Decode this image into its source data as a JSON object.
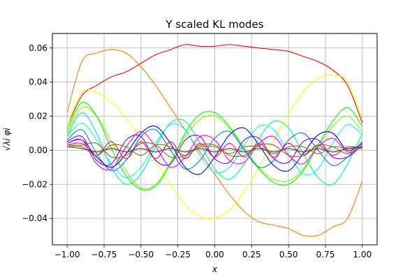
{
  "chart_data": {
    "type": "line",
    "title": "Y scaled KL modes",
    "xlabel": "x",
    "ylabel": "√λi φi",
    "xlim": [
      -1.1,
      1.1
    ],
    "ylim": [
      -0.0555,
      0.0685
    ],
    "x_ticks": [
      -1.0,
      -0.75,
      -0.5,
      -0.25,
      0.0,
      0.25,
      0.5,
      0.75,
      1.0
    ],
    "x_tick_labels": [
      "−1.00",
      "−0.75",
      "−0.50",
      "−0.25",
      "0.00",
      "0.25",
      "0.50",
      "0.75",
      "1.00"
    ],
    "y_ticks": [
      -0.04,
      -0.02,
      0.0,
      0.02,
      0.04,
      0.06
    ],
    "y_tick_labels": [
      "−0.04",
      "−0.02",
      "0.00",
      "0.02",
      "0.04",
      "0.06"
    ],
    "grid": true,
    "legend": false,
    "series": [
      {
        "color": "#ff0000",
        "x": [
          -1.0,
          -0.9,
          -0.8,
          -0.7,
          -0.6,
          -0.5,
          -0.4,
          -0.3,
          -0.2,
          -0.1,
          0.0,
          0.1,
          0.2,
          0.3,
          0.4,
          0.5,
          0.6,
          0.7,
          0.8,
          0.9,
          1.0
        ],
        "y": [
          0.014,
          0.032,
          0.038,
          0.043,
          0.046,
          0.051,
          0.056,
          0.059,
          0.062,
          0.061,
          0.061,
          0.062,
          0.061,
          0.06,
          0.059,
          0.058,
          0.055,
          0.052,
          0.047,
          0.038,
          0.016
        ]
      },
      {
        "color": "#ff8000",
        "x": [
          -1.0,
          -0.9,
          -0.8,
          -0.7,
          -0.6,
          -0.5,
          -0.4,
          -0.3,
          -0.2,
          -0.1,
          0.0,
          0.1,
          0.2,
          0.3,
          0.4,
          0.5,
          0.6,
          0.7,
          0.8,
          0.9,
          1.0
        ],
        "y": [
          0.022,
          0.052,
          0.057,
          0.059,
          0.057,
          0.049,
          0.038,
          0.025,
          0.012,
          -0.001,
          -0.014,
          -0.026,
          -0.036,
          -0.042,
          -0.044,
          -0.046,
          -0.05,
          -0.05,
          -0.045,
          -0.04,
          -0.018
        ]
      },
      {
        "color": "#ffff00",
        "x": [
          -1.0,
          -0.9,
          -0.8,
          -0.7,
          -0.6,
          -0.5,
          -0.4,
          -0.3,
          -0.2,
          -0.1,
          0.0,
          0.1,
          0.2,
          0.3,
          0.4,
          0.5,
          0.6,
          0.7,
          0.8,
          0.9,
          1.0
        ],
        "y": [
          0.014,
          0.034,
          0.034,
          0.028,
          0.019,
          0.007,
          -0.007,
          -0.02,
          -0.032,
          -0.039,
          -0.04,
          -0.035,
          -0.024,
          -0.01,
          0.006,
          0.021,
          0.034,
          0.042,
          0.044,
          0.04,
          0.018
        ]
      },
      {
        "color": "#80ff00",
        "x": [
          -1.0,
          -0.9,
          -0.8,
          -0.7,
          -0.6,
          -0.5,
          -0.4,
          -0.3,
          -0.2,
          -0.1,
          0.0,
          0.1,
          0.2,
          0.3,
          0.4,
          0.5,
          0.6,
          0.7,
          0.8,
          0.9,
          1.0
        ],
        "y": [
          0.01,
          0.025,
          0.02,
          0.005,
          -0.012,
          -0.022,
          -0.02,
          -0.007,
          0.008,
          0.018,
          0.02,
          0.013,
          0.001,
          -0.01,
          -0.017,
          -0.018,
          -0.011,
          0.002,
          0.014,
          0.02,
          0.011
        ]
      },
      {
        "color": "#00ff00",
        "x": [
          -1.0,
          -0.9,
          -0.8,
          -0.7,
          -0.6,
          -0.5,
          -0.4,
          -0.3,
          -0.2,
          -0.1,
          0.0,
          0.1,
          0.2,
          0.3,
          0.4,
          0.5,
          0.6,
          0.7,
          0.8,
          0.9,
          1.0
        ],
        "y": [
          0.012,
          0.028,
          0.02,
          0.001,
          -0.015,
          -0.023,
          -0.021,
          -0.008,
          0.01,
          0.021,
          0.022,
          0.014,
          0.001,
          -0.011,
          -0.019,
          -0.02,
          -0.012,
          0.003,
          0.017,
          0.025,
          0.014
        ]
      },
      {
        "color": "#00ff80",
        "x": [
          -1.0,
          -0.9,
          -0.8,
          -0.7,
          -0.6,
          -0.5,
          -0.4,
          -0.3,
          -0.2,
          -0.1,
          0.0,
          0.1,
          0.2,
          0.3,
          0.4,
          0.5,
          0.6,
          0.7,
          0.8,
          0.9,
          1.0
        ],
        "y": [
          0.008,
          0.022,
          0.01,
          -0.01,
          -0.02,
          -0.014,
          0.002,
          0.016,
          0.017,
          0.004,
          -0.011,
          -0.017,
          -0.008,
          0.007,
          0.017,
          0.013,
          -0.002,
          -0.016,
          -0.02,
          -0.008,
          0.01
        ]
      },
      {
        "color": "#00ffff",
        "x": [
          -1.0,
          -0.9,
          -0.8,
          -0.7,
          -0.6,
          -0.5,
          -0.4,
          -0.3,
          -0.2,
          -0.1,
          0.0,
          0.1,
          0.2,
          0.3,
          0.4,
          0.5,
          0.6,
          0.7,
          0.8,
          0.9,
          1.0
        ],
        "y": [
          0.008,
          0.016,
          0.006,
          -0.008,
          -0.016,
          -0.01,
          0.004,
          0.015,
          0.012,
          -0.003,
          -0.013,
          -0.01,
          0.003,
          0.014,
          0.012,
          -0.002,
          -0.014,
          -0.011,
          0.004,
          0.015,
          0.009
        ]
      },
      {
        "color": "#0080ff",
        "x": [
          -1.0,
          -0.9,
          -0.8,
          -0.7,
          -0.6,
          -0.5,
          -0.4,
          -0.3,
          -0.2,
          -0.1,
          0.0,
          0.1,
          0.2,
          0.3,
          0.4,
          0.5,
          0.6,
          0.7,
          0.8,
          0.9,
          1.0
        ],
        "y": [
          0.006,
          0.012,
          -0.002,
          -0.012,
          -0.006,
          0.008,
          0.012,
          0.0,
          -0.011,
          -0.006,
          0.007,
          0.011,
          0.0,
          -0.01,
          -0.006,
          0.006,
          0.01,
          0.0,
          -0.009,
          -0.004,
          0.005
        ]
      },
      {
        "color": "#0000ff",
        "x": [
          -1.0,
          -0.9,
          -0.8,
          -0.7,
          -0.6,
          -0.5,
          -0.4,
          -0.3,
          -0.2,
          -0.1,
          0.0,
          0.1,
          0.2,
          0.3,
          0.4,
          0.5,
          0.6,
          0.7,
          0.8,
          0.9,
          1.0
        ],
        "y": [
          0.004,
          0.006,
          -0.004,
          -0.01,
          -0.002,
          0.01,
          0.014,
          0.004,
          -0.01,
          -0.014,
          -0.004,
          0.009,
          0.013,
          0.003,
          -0.009,
          -0.012,
          -0.002,
          0.009,
          0.01,
          0.0,
          0.004
        ]
      },
      {
        "color": "#8000ff",
        "x": [
          -1.0,
          -0.9,
          -0.8,
          -0.7,
          -0.6,
          -0.5,
          -0.4,
          -0.3,
          -0.2,
          -0.1,
          0.0,
          0.1,
          0.2,
          0.3,
          0.4,
          0.5,
          0.6,
          0.7,
          0.8,
          0.9,
          1.0
        ],
        "y": [
          0.005,
          0.008,
          -0.006,
          -0.008,
          0.006,
          0.008,
          -0.006,
          -0.008,
          0.006,
          0.008,
          -0.005,
          -0.007,
          0.006,
          0.007,
          -0.005,
          -0.007,
          0.005,
          0.006,
          -0.004,
          -0.004,
          0.003
        ]
      },
      {
        "color": "#ff00ff",
        "x": [
          -1.0,
          -0.9,
          -0.8,
          -0.7,
          -0.6,
          -0.5,
          -0.4,
          -0.3,
          -0.2,
          -0.1,
          0.0,
          0.1,
          0.2,
          0.3,
          0.4,
          0.5,
          0.6,
          0.7,
          0.8,
          0.9,
          1.0
        ],
        "y": [
          0.004,
          0.006,
          -0.008,
          -0.011,
          0.002,
          0.011,
          0.002,
          -0.01,
          -0.004,
          0.008,
          0.006,
          -0.006,
          -0.007,
          0.004,
          0.008,
          -0.003,
          -0.008,
          0.002,
          0.007,
          -0.001,
          0.002
        ]
      },
      {
        "color": "#ff0080",
        "x": [
          -1.0,
          -0.9,
          -0.8,
          -0.7,
          -0.6,
          -0.5,
          -0.4,
          -0.3,
          -0.2,
          -0.1,
          0.0,
          0.1,
          0.2,
          0.3,
          0.4,
          0.5,
          0.6,
          0.7,
          0.8,
          0.9,
          1.0
        ],
        "y": [
          0.003,
          0.004,
          -0.003,
          0.005,
          -0.005,
          0.005,
          -0.005,
          0.005,
          -0.005,
          0.004,
          -0.004,
          0.004,
          -0.004,
          0.004,
          -0.004,
          0.004,
          -0.003,
          0.003,
          -0.003,
          0.002,
          0.001
        ]
      },
      {
        "color": "#a06020",
        "x": [
          -1.0,
          -0.9,
          -0.8,
          -0.7,
          -0.6,
          -0.5,
          -0.4,
          -0.3,
          -0.2,
          -0.1,
          0.0,
          0.1,
          0.2,
          0.3,
          0.4,
          0.5,
          0.6,
          0.7,
          0.8,
          0.9,
          1.0
        ],
        "y": [
          0.003,
          0.003,
          0.004,
          -0.004,
          -0.003,
          0.004,
          0.003,
          -0.004,
          -0.003,
          0.003,
          0.003,
          -0.003,
          -0.003,
          0.003,
          0.003,
          -0.003,
          -0.003,
          0.003,
          0.002,
          -0.002,
          0.002
        ]
      },
      {
        "color": "#808000",
        "x": [
          -1.0,
          -0.9,
          -0.8,
          -0.7,
          -0.6,
          -0.5,
          -0.4,
          -0.3,
          -0.2,
          -0.1,
          0.0,
          0.1,
          0.2,
          0.3,
          0.4,
          0.5,
          0.6,
          0.7,
          0.8,
          0.9,
          1.0
        ],
        "y": [
          0.002,
          0.002,
          -0.003,
          0.003,
          0.002,
          -0.003,
          0.003,
          0.002,
          -0.003,
          0.002,
          0.002,
          -0.002,
          0.002,
          0.002,
          -0.002,
          0.002,
          0.002,
          -0.002,
          0.002,
          0.001,
          0.001
        ]
      },
      {
        "color": "#404040",
        "x": [
          -1.0,
          -0.9,
          -0.8,
          -0.7,
          -0.6,
          -0.5,
          -0.4,
          -0.3,
          -0.2,
          -0.1,
          0.0,
          0.1,
          0.2,
          0.3,
          0.4,
          0.5,
          0.6,
          0.7,
          0.8,
          0.9,
          1.0
        ],
        "y": [
          0.002,
          0.001,
          -0.001,
          0.001,
          -0.001,
          0.001,
          -0.001,
          0.001,
          -0.001,
          0.001,
          -0.001,
          0.001,
          -0.001,
          0.001,
          -0.001,
          0.001,
          -0.001,
          0.001,
          -0.001,
          0.001,
          0.002
        ]
      }
    ]
  }
}
